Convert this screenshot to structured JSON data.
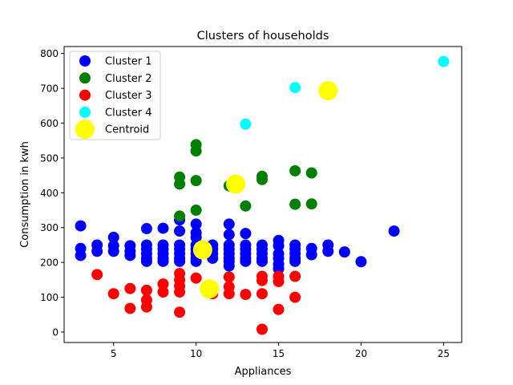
{
  "chart_data": {
    "type": "scatter",
    "title": "Clusters of households",
    "xlabel": "Appliances",
    "ylabel": "Consumption in kwh",
    "xlim": [
      2.0,
      26.1
    ],
    "ylim": [
      -30,
      820
    ],
    "xticks": [
      5,
      10,
      15,
      20,
      25
    ],
    "yticks": [
      0,
      100,
      200,
      300,
      400,
      500,
      600,
      700,
      800
    ],
    "grid": false,
    "legend_position": "upper-left",
    "series": [
      {
        "name": "Cluster 1",
        "color": "#0000ff",
        "points": [
          [
            3,
            305
          ],
          [
            3,
            240
          ],
          [
            3,
            220
          ],
          [
            4,
            250
          ],
          [
            4,
            232
          ],
          [
            5,
            272
          ],
          [
            5,
            248
          ],
          [
            5,
            232
          ],
          [
            6,
            248
          ],
          [
            6,
            232
          ],
          [
            6,
            220
          ],
          [
            7,
            297
          ],
          [
            7,
            250
          ],
          [
            7,
            238
          ],
          [
            7,
            225
          ],
          [
            7,
            212
          ],
          [
            7,
            203
          ],
          [
            8,
            298
          ],
          [
            8,
            250
          ],
          [
            8,
            238
          ],
          [
            8,
            225
          ],
          [
            8,
            212
          ],
          [
            8,
            203
          ],
          [
            9,
            322
          ],
          [
            9,
            290
          ],
          [
            9,
            250
          ],
          [
            9,
            238
          ],
          [
            9,
            225
          ],
          [
            9,
            212
          ],
          [
            9,
            203
          ],
          [
            10,
            310
          ],
          [
            10,
            285
          ],
          [
            10,
            272
          ],
          [
            10,
            250
          ],
          [
            10,
            238
          ],
          [
            10,
            225
          ],
          [
            10,
            212
          ],
          [
            10,
            203
          ],
          [
            11,
            250
          ],
          [
            11,
            238
          ],
          [
            11,
            225
          ],
          [
            11,
            212
          ],
          [
            12,
            310
          ],
          [
            12,
            280
          ],
          [
            12,
            250
          ],
          [
            12,
            238
          ],
          [
            12,
            225
          ],
          [
            12,
            212
          ],
          [
            12,
            203
          ],
          [
            12,
            190
          ],
          [
            13,
            283
          ],
          [
            13,
            250
          ],
          [
            13,
            238
          ],
          [
            13,
            225
          ],
          [
            13,
            212
          ],
          [
            13,
            203
          ],
          [
            14,
            250
          ],
          [
            14,
            238
          ],
          [
            14,
            225
          ],
          [
            14,
            212
          ],
          [
            14,
            203
          ],
          [
            15,
            263
          ],
          [
            15,
            248
          ],
          [
            15,
            225
          ],
          [
            15,
            212
          ],
          [
            15,
            195
          ],
          [
            15,
            182
          ],
          [
            16,
            250
          ],
          [
            16,
            238
          ],
          [
            16,
            225
          ],
          [
            16,
            212
          ],
          [
            16,
            203
          ],
          [
            17,
            240
          ],
          [
            17,
            222
          ],
          [
            18,
            250
          ],
          [
            18,
            232
          ],
          [
            19,
            230
          ],
          [
            20,
            202
          ],
          [
            22,
            290
          ]
        ]
      },
      {
        "name": "Cluster 2",
        "color": "#008000",
        "points": [
          [
            9,
            445
          ],
          [
            9,
            425
          ],
          [
            9,
            333
          ],
          [
            10,
            538
          ],
          [
            10,
            520
          ],
          [
            10,
            435
          ],
          [
            10,
            350
          ],
          [
            12,
            420
          ],
          [
            13,
            362
          ],
          [
            14,
            447
          ],
          [
            14,
            438
          ],
          [
            16,
            463
          ],
          [
            16,
            367
          ],
          [
            17,
            457
          ],
          [
            17,
            368
          ]
        ]
      },
      {
        "name": "Cluster 3",
        "color": "#ff0000",
        "points": [
          [
            4,
            165
          ],
          [
            5,
            110
          ],
          [
            6,
            125
          ],
          [
            6,
            68
          ],
          [
            7,
            120
          ],
          [
            7,
            92
          ],
          [
            7,
            72
          ],
          [
            8,
            138
          ],
          [
            8,
            115
          ],
          [
            9,
            168
          ],
          [
            9,
            150
          ],
          [
            9,
            132
          ],
          [
            9,
            115
          ],
          [
            9,
            57
          ],
          [
            10,
            155
          ],
          [
            11,
            130
          ],
          [
            11,
            110
          ],
          [
            12,
            158
          ],
          [
            12,
            130
          ],
          [
            12,
            110
          ],
          [
            13,
            108
          ],
          [
            14,
            160
          ],
          [
            14,
            148
          ],
          [
            14,
            110
          ],
          [
            14,
            8
          ],
          [
            15,
            160
          ],
          [
            15,
            145
          ],
          [
            15,
            65
          ],
          [
            16,
            160
          ],
          [
            16,
            100
          ]
        ]
      },
      {
        "name": "Cluster 4",
        "color": "#00ffff",
        "points": [
          [
            13,
            597
          ],
          [
            16,
            702
          ],
          [
            25,
            777
          ]
        ]
      },
      {
        "name": "Centroid",
        "color": "#ffff00",
        "marker": "large",
        "points": [
          [
            10.4,
            236
          ],
          [
            10.8,
            124
          ],
          [
            12.4,
            425
          ],
          [
            18,
            693
          ]
        ]
      }
    ]
  }
}
